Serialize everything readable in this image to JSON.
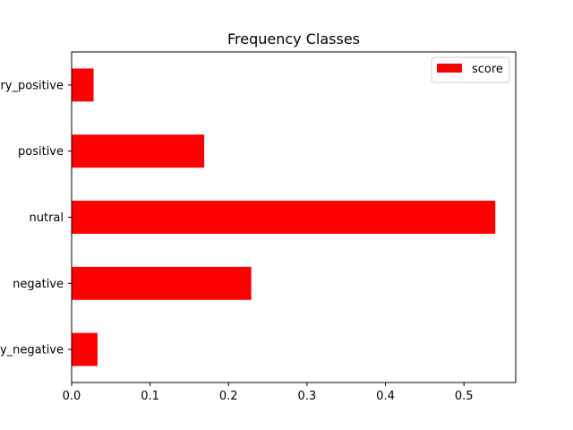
{
  "chart_data": {
    "type": "bar",
    "orientation": "horizontal",
    "title": "Frequency Classes",
    "xlabel": "",
    "ylabel": "",
    "categories": [
      "very_negative",
      "negative",
      "nutral",
      "positive",
      "very_positive"
    ],
    "series": [
      {
        "name": "score",
        "values": [
          0.033,
          0.229,
          0.54,
          0.169,
          0.028
        ],
        "color": "#ff0000"
      }
    ],
    "xlim": [
      0,
      0.566
    ],
    "xticks": [
      "0.0",
      "0.1",
      "0.2",
      "0.3",
      "0.4",
      "0.5"
    ],
    "grid": false,
    "legend_position": "top-right"
  }
}
